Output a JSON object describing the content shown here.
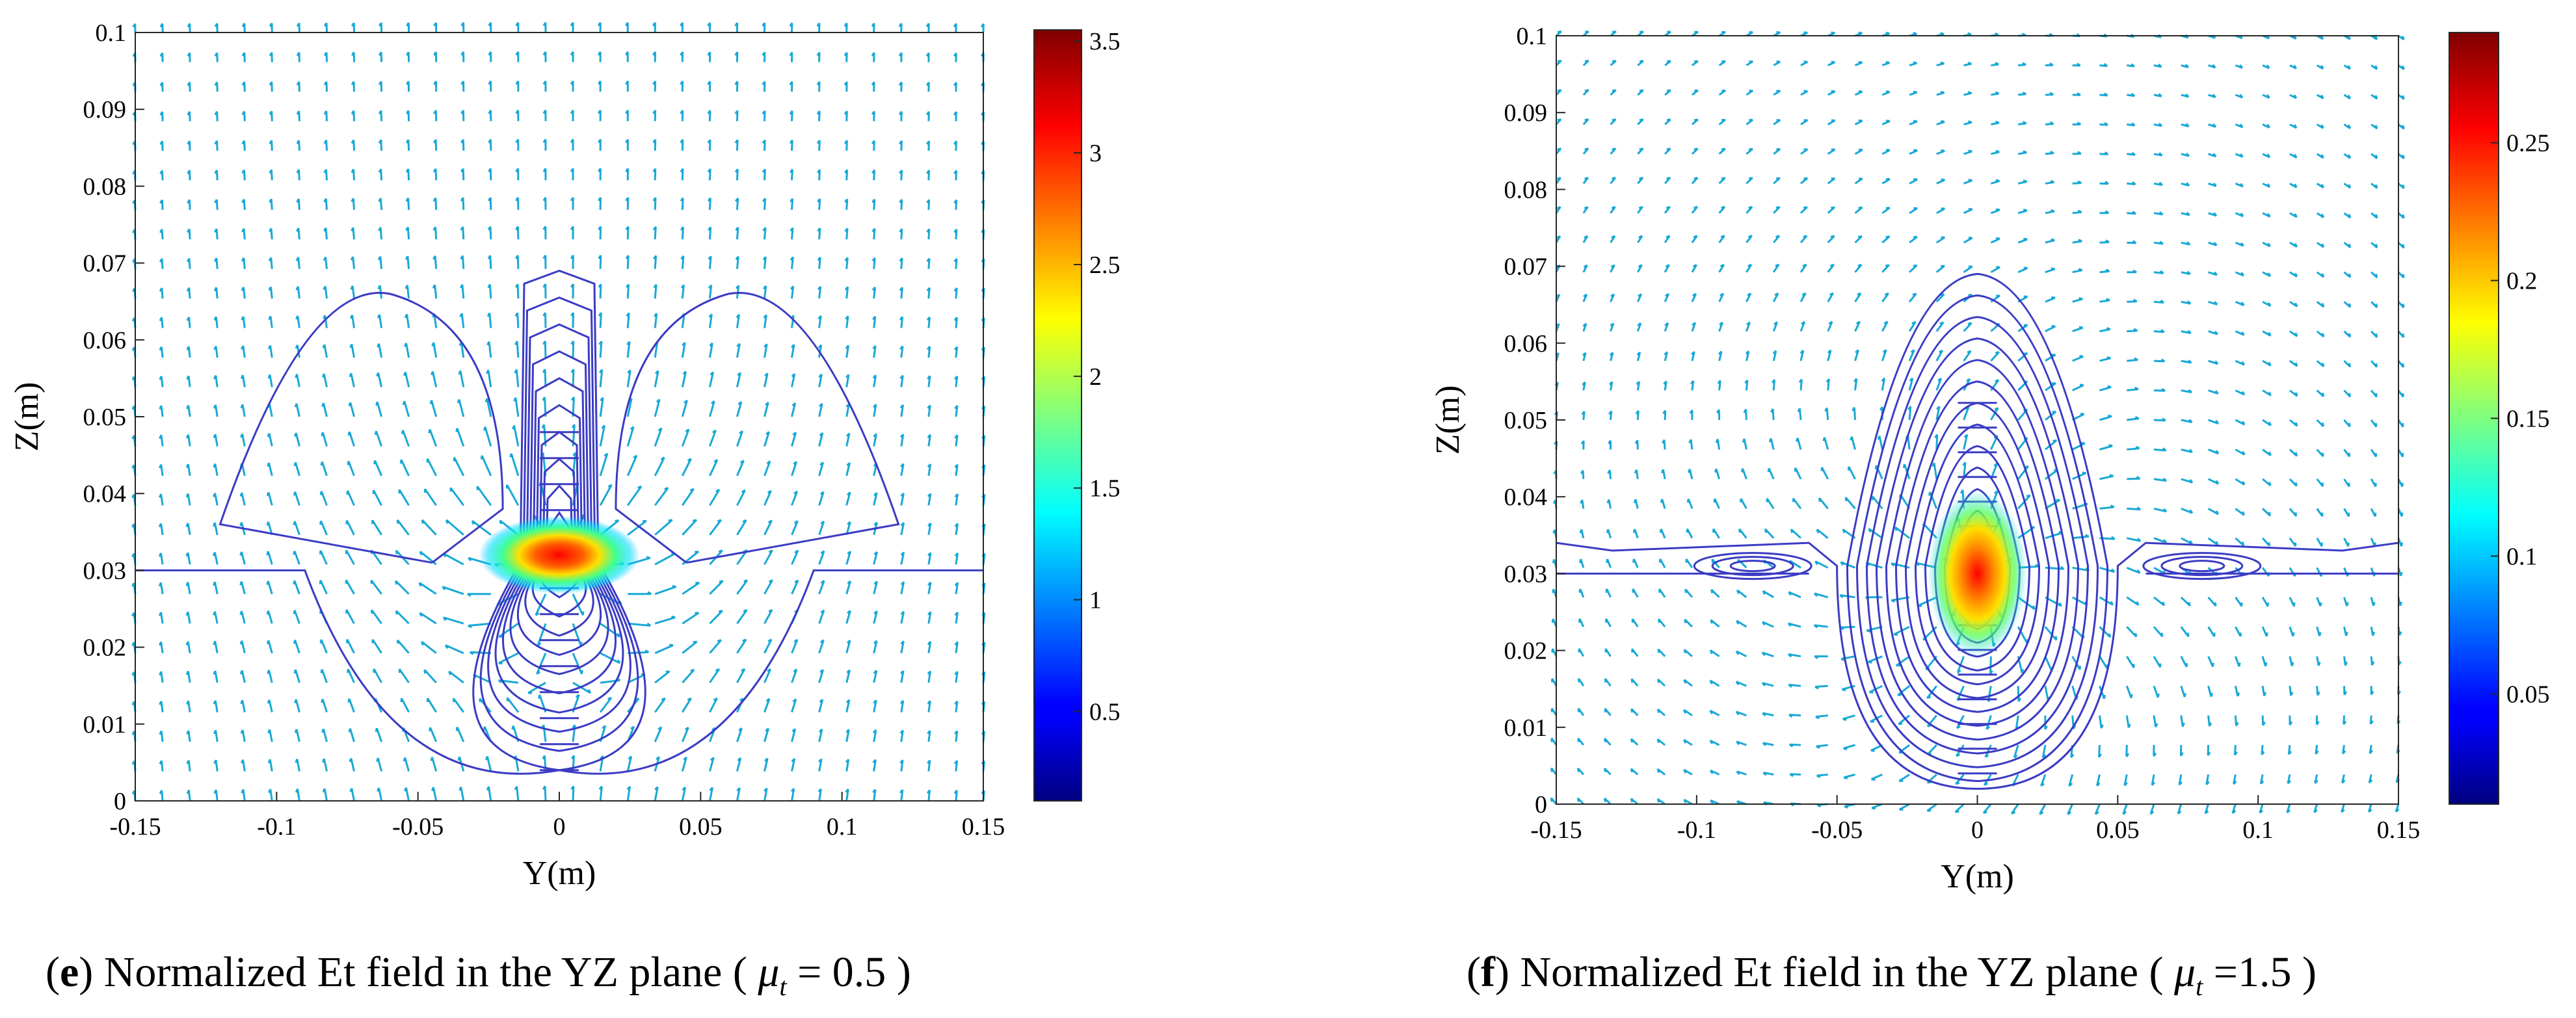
{
  "chart_data": [
    {
      "type": "vector_field_contour",
      "panel_letter": "e",
      "caption": "Normalized Et field in the YZ plane",
      "caption_param_symbol": "μ",
      "caption_param_sub": "t",
      "caption_param_value": "= 0.5",
      "xlabel": "Y(m)",
      "ylabel": "Z(m)",
      "xlim": [
        -0.15,
        0.15
      ],
      "ylim": [
        0,
        0.1
      ],
      "xticks": [
        "-0.15",
        "-0.1",
        "-0.05",
        "0",
        "0.05",
        "0.1",
        "0.15"
      ],
      "yticks": [
        "0",
        "0.01",
        "0.02",
        "0.03",
        "0.04",
        "0.05",
        "0.06",
        "0.07",
        "0.08",
        "0.09",
        "0.1"
      ],
      "colorbar": {
        "min": 0.1,
        "max": 3.55,
        "ticks": [
          "0.5",
          "1",
          "1.5",
          "2",
          "2.5",
          "3",
          "3.5"
        ],
        "colormap": "jet"
      },
      "source_center": [
        0,
        0.032
      ],
      "peak_value": 3.5,
      "contour_color": "#3b3bc4",
      "arrow_color": "#19a9d6"
    },
    {
      "type": "vector_field_contour",
      "panel_letter": "f",
      "caption": "Normalized Et field in the YZ plane",
      "caption_param_symbol": "μ",
      "caption_param_sub": "t",
      "caption_param_value": "=1.5",
      "xlabel": "Y(m)",
      "ylabel": "Z(m)",
      "xlim": [
        -0.15,
        0.15
      ],
      "ylim": [
        0,
        0.1
      ],
      "xticks": [
        "-0.15",
        "-0.1",
        "-0.05",
        "0",
        "0.05",
        "0.1",
        "0.15"
      ],
      "yticks": [
        "0",
        "0.01",
        "0.02",
        "0.03",
        "0.04",
        "0.05",
        "0.06",
        "0.07",
        "0.08",
        "0.09",
        "0.1"
      ],
      "colorbar": {
        "min": 0.01,
        "max": 0.29,
        "ticks": [
          "0.05",
          "0.1",
          "0.15",
          "0.2",
          "0.25"
        ],
        "colormap": "jet"
      },
      "source_center": [
        0,
        0.03
      ],
      "peak_value": 0.28,
      "contour_color": "#3b3bc4",
      "arrow_color": "#19a9d6"
    }
  ]
}
